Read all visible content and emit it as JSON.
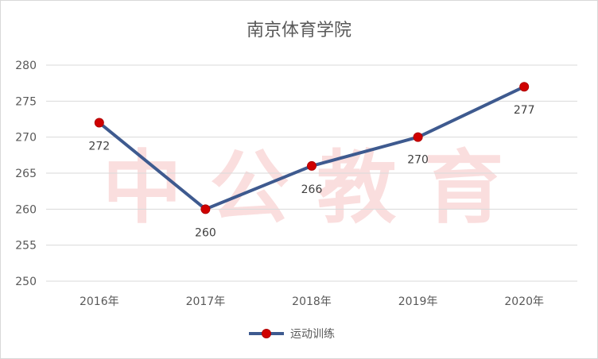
{
  "chart_data": {
    "type": "line",
    "title": "南京体育学院",
    "categories": [
      "2016年",
      "2017年",
      "2018年",
      "2019年",
      "2020年"
    ],
    "series": [
      {
        "name": "运动训练",
        "values": [
          272,
          260,
          266,
          270,
          277
        ],
        "color": "#3e5a8f",
        "marker_color": "#d00000"
      }
    ],
    "ylim": [
      250,
      280
    ],
    "yticks": [
      250,
      255,
      260,
      265,
      270,
      275,
      280
    ],
    "grid": true,
    "legend": "bottom",
    "xlabel": "",
    "ylabel": ""
  },
  "watermark": "中 公 教 育",
  "colors": {
    "grid": "#d9d9d9",
    "text": "#595959",
    "watermark": "#f4b8b8"
  }
}
